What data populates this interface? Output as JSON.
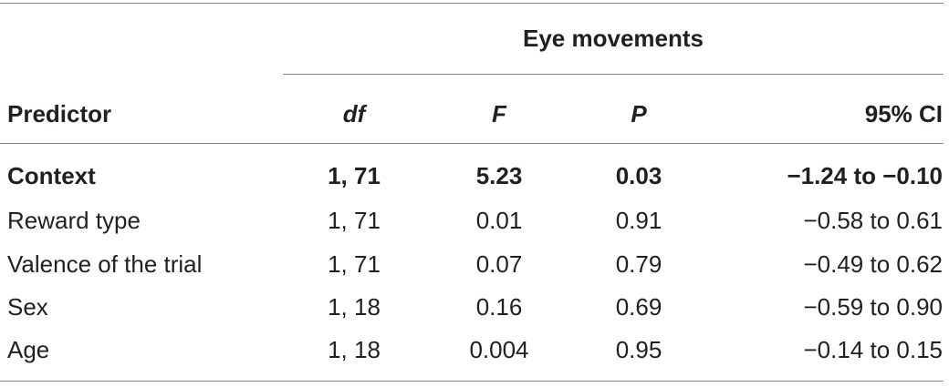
{
  "table": {
    "group_header": "Eye movements",
    "headers": {
      "predictor": "Predictor",
      "df": "df",
      "f": "F",
      "p": "P",
      "ci": "95% CI"
    },
    "rows": [
      {
        "predictor": "Context",
        "df": "1, 71",
        "f": "5.23",
        "p": "0.03",
        "ci": "−1.24 to −0.10",
        "bold": true
      },
      {
        "predictor": "Reward type",
        "df": "1, 71",
        "f": "0.01",
        "p": "0.91",
        "ci": "−0.58 to 0.61",
        "bold": false
      },
      {
        "predictor": "Valence of the trial",
        "df": "1, 71",
        "f": "0.07",
        "p": "0.79",
        "ci": "−0.49 to 0.62",
        "bold": false
      },
      {
        "predictor": "Sex",
        "df": "1, 18",
        "f": "0.16",
        "p": "0.69",
        "ci": "−0.59 to 0.90",
        "bold": false
      },
      {
        "predictor": "Age",
        "df": "1, 18",
        "f": "0.004",
        "p": "0.95",
        "ci": "−0.14 to 0.15",
        "bold": false
      }
    ]
  }
}
